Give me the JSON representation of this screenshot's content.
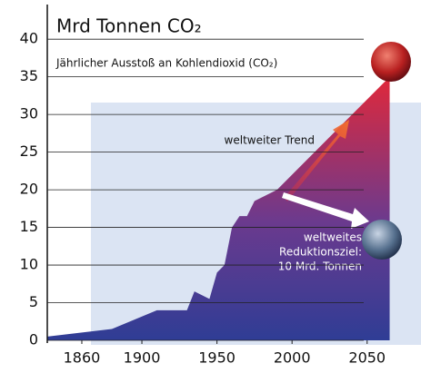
{
  "chart_data": {
    "type": "area",
    "title": "Mrd Tonnen CO₂",
    "subtitle": "Jährlicher Ausstoß an Kohlendioxid (CO₂)",
    "annotations": {
      "trend": "weltweiter Trend",
      "target": [
        "weltweites",
        "Reduktionsziel:",
        "10 Mrd. Tonnen"
      ]
    },
    "series": [
      {
        "x": [
          1837,
          1880,
          1910,
          1930,
          1935,
          1945,
          1950,
          1955,
          1960,
          1965,
          1970,
          1975,
          1980,
          1990,
          2000,
          2065
        ],
        "values": [
          0.5,
          1.5,
          4,
          4,
          6.5,
          5.5,
          9,
          10,
          15,
          16.5,
          16.5,
          18.5,
          19,
          20,
          22,
          35
        ]
      }
    ],
    "xlim": [
      1837,
      2078
    ],
    "xticks": [
      1860,
      1900,
      1950,
      2000,
      2050
    ],
    "ylim": [
      0,
      44
    ],
    "yticks": [
      0,
      5,
      10,
      15,
      20,
      25,
      30,
      35,
      40
    ],
    "grid": true
  }
}
